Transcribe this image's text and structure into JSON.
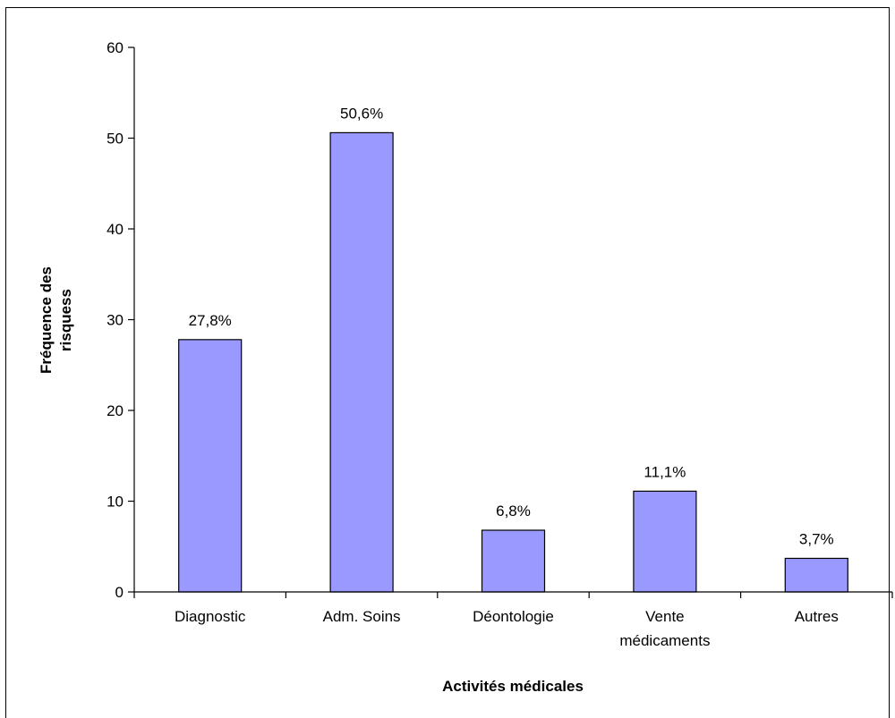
{
  "chart_data": {
    "type": "bar",
    "title": "",
    "xlabel": "Activités médicales",
    "ylabel_lines": [
      "Fréquence des",
      "risquess"
    ],
    "categories": [
      [
        "Diagnostic"
      ],
      [
        "Adm. Soins"
      ],
      [
        "Déontologie"
      ],
      [
        "Vente",
        "médicaments"
      ],
      [
        "Autres"
      ]
    ],
    "values": [
      27.8,
      50.6,
      6.8,
      11.1,
      3.7
    ],
    "data_labels": [
      "27,8%",
      "50,6%",
      "6,8%",
      "11,1%",
      "3,7%"
    ],
    "ylim": [
      0,
      60
    ],
    "yticks": [
      0,
      10,
      20,
      30,
      40,
      50,
      60
    ],
    "ytick_labels": [
      "0",
      "10",
      "20",
      "30",
      "40",
      "50",
      "60"
    ],
    "grid": false,
    "legend": "none",
    "colors": {
      "bar_fill": "#9999FF",
      "bar_stroke": "#000000",
      "axis": "#000000",
      "background": "#FFFFFF"
    }
  }
}
